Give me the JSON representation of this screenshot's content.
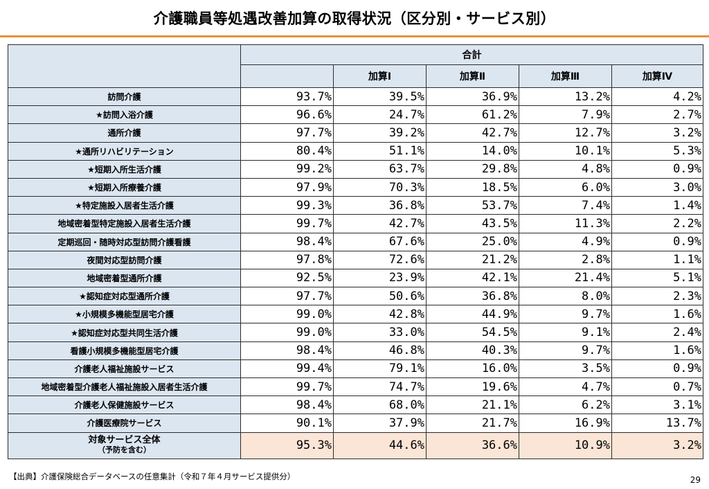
{
  "title": "介護職員等処遇改善加算の取得状況（区分別・サービス別）",
  "table": {
    "header_total": "合計",
    "header_subs": [
      "加算Ⅰ",
      "加算Ⅱ",
      "加算Ⅲ",
      "加算Ⅳ"
    ],
    "rows": [
      {
        "label": "訪問介護",
        "values": [
          "93.7%",
          "39.5%",
          "36.9%",
          "13.2%",
          "4.2%"
        ]
      },
      {
        "label": "★訪問入浴介護",
        "values": [
          "96.6%",
          "24.7%",
          "61.2%",
          "7.9%",
          "2.7%"
        ]
      },
      {
        "label": "通所介護",
        "values": [
          "97.7%",
          "39.2%",
          "42.7%",
          "12.7%",
          "3.2%"
        ]
      },
      {
        "label": "★通所リハビリテーション",
        "values": [
          "80.4%",
          "51.1%",
          "14.0%",
          "10.1%",
          "5.3%"
        ]
      },
      {
        "label": "★短期入所生活介護",
        "values": [
          "99.2%",
          "63.7%",
          "29.8%",
          "4.8%",
          "0.9%"
        ]
      },
      {
        "label": "★短期入所療養介護",
        "values": [
          "97.9%",
          "70.3%",
          "18.5%",
          "6.0%",
          "3.0%"
        ]
      },
      {
        "label": "★特定施設入居者生活介護",
        "values": [
          "99.3%",
          "36.8%",
          "53.7%",
          "7.4%",
          "1.4%"
        ]
      },
      {
        "label": "地域密着型特定施設入居者生活介護",
        "values": [
          "99.7%",
          "42.7%",
          "43.5%",
          "11.3%",
          "2.2%"
        ]
      },
      {
        "label": "定期巡回・随時対応型訪問介護看護",
        "values": [
          "98.4%",
          "67.6%",
          "25.0%",
          "4.9%",
          "0.9%"
        ]
      },
      {
        "label": "夜間対応型訪問介護",
        "values": [
          "97.8%",
          "72.6%",
          "21.2%",
          "2.8%",
          "1.1%"
        ]
      },
      {
        "label": "地域密着型通所介護",
        "values": [
          "92.5%",
          "23.9%",
          "42.1%",
          "21.4%",
          "5.1%"
        ]
      },
      {
        "label": "★認知症対応型通所介護",
        "values": [
          "97.7%",
          "50.6%",
          "36.8%",
          "8.0%",
          "2.3%"
        ]
      },
      {
        "label": "★小規模多機能型居宅介護",
        "values": [
          "99.0%",
          "42.8%",
          "44.9%",
          "9.7%",
          "1.6%"
        ]
      },
      {
        "label": "★認知症対応型共同生活介護",
        "values": [
          "99.0%",
          "33.0%",
          "54.5%",
          "9.1%",
          "2.4%"
        ]
      },
      {
        "label": "看護小規模多機能型居宅介護",
        "values": [
          "98.4%",
          "46.8%",
          "40.3%",
          "9.7%",
          "1.6%"
        ]
      },
      {
        "label": "介護老人福祉施設サービス",
        "values": [
          "99.4%",
          "79.1%",
          "16.0%",
          "3.5%",
          "0.9%"
        ]
      },
      {
        "label": "地域密着型介護老人福祉施設入居者生活介護",
        "values": [
          "99.7%",
          "74.7%",
          "19.6%",
          "4.7%",
          "0.7%"
        ]
      },
      {
        "label": "介護老人保健施設サービス",
        "values": [
          "98.4%",
          "68.0%",
          "21.1%",
          "6.2%",
          "3.1%"
        ]
      },
      {
        "label": "介護医療院サービス",
        "values": [
          "90.1%",
          "37.9%",
          "21.7%",
          "16.9%",
          "13.7%"
        ]
      }
    ],
    "total": {
      "label": "対象サービス全体",
      "sublabel": "（予防を含む）",
      "values": [
        "95.3%",
        "44.6%",
        "36.6%",
        "10.9%",
        "3.2%"
      ]
    }
  },
  "source_note": "【出典】介護保険総合データベースの任意集計（令和７年４月サービス提供分）",
  "page_number": "29",
  "colors": {
    "accent_rule": "#e8913a",
    "header_fill": "#dce6f1",
    "total_fill": "#fbe5d6"
  }
}
